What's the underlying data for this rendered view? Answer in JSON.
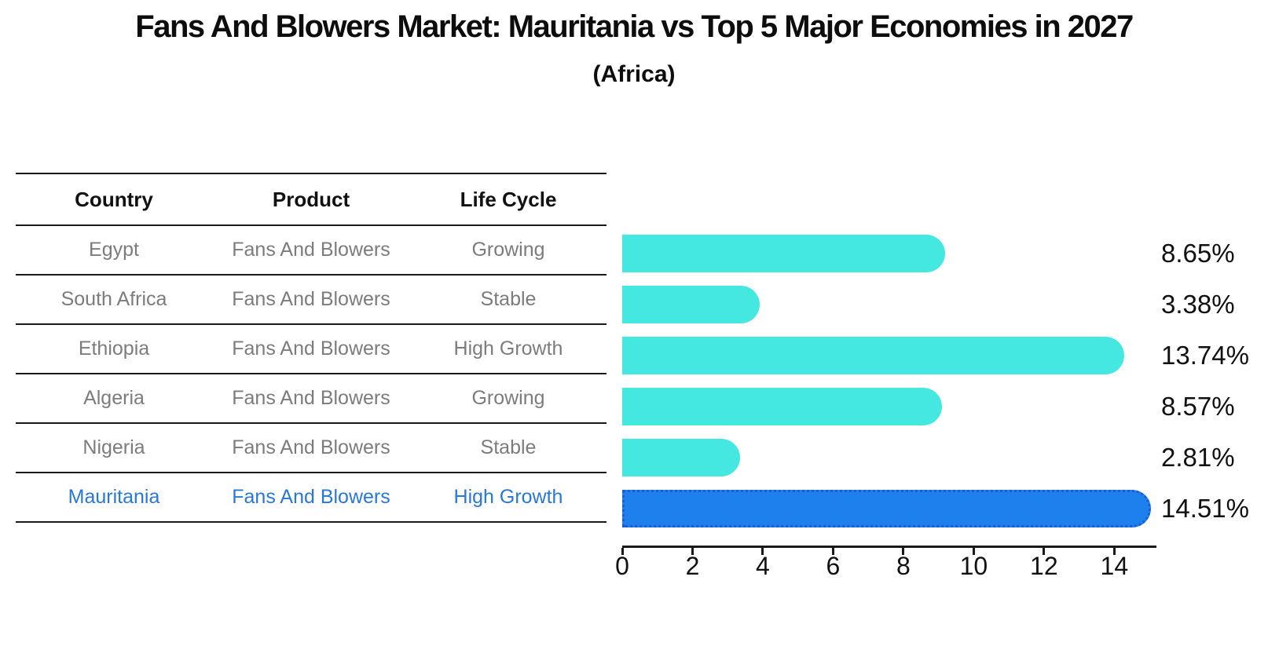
{
  "header": {
    "title": "Fans And Blowers Market: Mauritania vs Top 5 Major Economies in 2027",
    "subtitle": "(Africa)"
  },
  "table": {
    "columns": [
      "Country",
      "Product",
      "Life Cycle"
    ],
    "rows": [
      {
        "country": "Egypt",
        "product": "Fans And Blowers",
        "life_cycle": "Growing",
        "highlight": false
      },
      {
        "country": "South Africa",
        "product": "Fans And Blowers",
        "life_cycle": "Stable",
        "highlight": false
      },
      {
        "country": "Ethiopia",
        "product": "Fans And Blowers",
        "life_cycle": "High Growth",
        "highlight": false
      },
      {
        "country": "Algeria",
        "product": "Fans And Blowers",
        "life_cycle": "Growing",
        "highlight": false
      },
      {
        "country": "Nigeria",
        "product": "Fans And Blowers",
        "life_cycle": "Stable",
        "highlight": false
      },
      {
        "country": "Mauritania",
        "product": "Fans And Blowers",
        "life_cycle": "High Growth",
        "highlight": true
      }
    ]
  },
  "chart_data": {
    "type": "bar",
    "orientation": "horizontal",
    "title": "Fans And Blowers Market: Mauritania vs Top 5 Major Economies in 2027",
    "subtitle": "(Africa)",
    "categories": [
      "Egypt",
      "South Africa",
      "Ethiopia",
      "Algeria",
      "Nigeria",
      "Mauritania"
    ],
    "values": [
      8.65,
      3.38,
      13.74,
      8.57,
      2.81,
      14.51
    ],
    "value_labels": [
      "8.65%",
      "3.38%",
      "13.74%",
      "8.57%",
      "2.81%",
      "14.51%"
    ],
    "xlim": [
      0,
      15.2
    ],
    "xticks": [
      0,
      2,
      4,
      6,
      8,
      10,
      12,
      14
    ],
    "grid": false,
    "legend": false,
    "highlight_index": 5,
    "bar_color": "#45E7E1",
    "highlight_color": "#1E80EC",
    "highlight_border_color": "#1C5CD6",
    "highlight_text_color": "#2878d8",
    "body_text_color": "#7c7c7c",
    "line_color": "#1a1a1a"
  }
}
